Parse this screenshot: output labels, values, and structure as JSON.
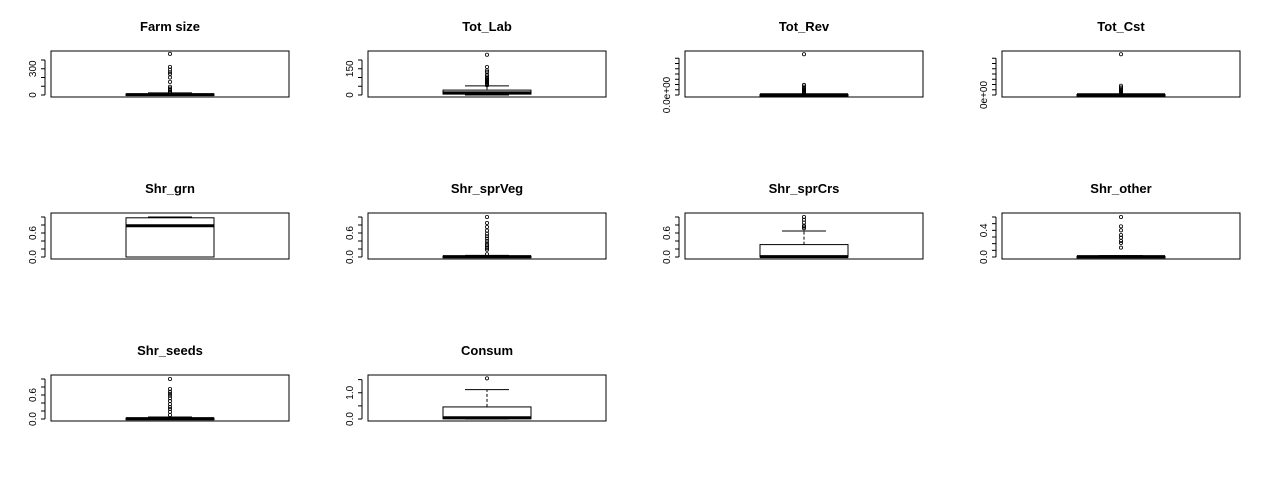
{
  "chart_data": [
    {
      "type": "box",
      "title": "Farm size",
      "ylim": [
        0,
        480
      ],
      "ticks": [
        0,
        100,
        200,
        300,
        400
      ],
      "tick_labels": [
        "0",
        "",
        "",
        "300",
        ""
      ],
      "box": {
        "min": 0,
        "q1": 2,
        "median": 5,
        "q3": 12,
        "max": 25
      },
      "outliers": [
        30,
        40,
        55,
        75,
        95,
        150,
        200,
        240,
        260,
        290,
        320,
        470
      ]
    },
    {
      "type": "box",
      "title": "Tot_Lab",
      "ylim": [
        0,
        240
      ],
      "ticks": [
        0,
        50,
        100,
        150,
        200
      ],
      "tick_labels": [
        "0",
        "",
        "",
        "150",
        ""
      ],
      "box": {
        "min": 0,
        "q1": 5,
        "median": 12,
        "q3": 28,
        "max": 52
      },
      "outliers": [
        56,
        60,
        65,
        70,
        75,
        80,
        85,
        90,
        95,
        105,
        115,
        130,
        140,
        160,
        230
      ]
    },
    {
      "type": "box",
      "title": "Tot_Rev",
      "ylim": [
        0,
        100
      ],
      "ticks": [
        0,
        12.5,
        25,
        37.5,
        50,
        62.5,
        75,
        87.5
      ],
      "tick_labels": [
        "0.0e+00",
        "",
        "",
        "",
        "",
        "",
        "",
        ""
      ],
      "box": {
        "min": 0,
        "q1": 0.3,
        "median": 0.6,
        "q3": 1.2,
        "max": 2.5
      },
      "outliers": [
        3,
        4,
        6,
        8,
        10,
        12,
        14,
        16,
        20,
        24,
        97
      ]
    },
    {
      "type": "box",
      "title": "Tot_Cst",
      "ylim": [
        0,
        100
      ],
      "ticks": [
        0,
        12.5,
        25,
        37.5,
        50,
        62.5,
        75,
        87.5
      ],
      "tick_labels": [
        "0e+00",
        "",
        "",
        "",
        "",
        "",
        "",
        ""
      ],
      "box": {
        "min": 0,
        "q1": 0.3,
        "median": 0.6,
        "q3": 1.2,
        "max": 2.5
      },
      "outliers": [
        3,
        5,
        7,
        9,
        12,
        15,
        18,
        22,
        97
      ]
    },
    {
      "type": "box",
      "title": "Shr_grn",
      "ylim": [
        0,
        1.05
      ],
      "ticks": [
        0,
        0.2,
        0.4,
        0.6,
        0.8,
        1.0
      ],
      "tick_labels": [
        "0.0",
        "",
        "",
        "0.6",
        "",
        ""
      ],
      "box": {
        "min": 0,
        "q1": 0,
        "median": 0.78,
        "q3": 0.98,
        "max": 1.0
      },
      "outliers": []
    },
    {
      "type": "box",
      "title": "Shr_sprVeg",
      "ylim": [
        0,
        1.05
      ],
      "ticks": [
        0,
        0.2,
        0.4,
        0.6,
        0.8,
        1.0
      ],
      "tick_labels": [
        "0.0",
        "",
        "",
        "0.6",
        "",
        ""
      ],
      "box": {
        "min": 0,
        "q1": 0,
        "median": 0.01,
        "q3": 0.02,
        "max": 0.04
      },
      "outliers": [
        0.07,
        0.18,
        0.22,
        0.26,
        0.3,
        0.34,
        0.4,
        0.46,
        0.52,
        0.58,
        0.66,
        0.75,
        0.85,
        1.0
      ]
    },
    {
      "type": "box",
      "title": "Shr_sprCrs",
      "ylim": [
        0,
        1.05
      ],
      "ticks": [
        0,
        0.2,
        0.4,
        0.6,
        0.8,
        1.0
      ],
      "tick_labels": [
        "0.0",
        "",
        "",
        "0.6",
        "",
        ""
      ],
      "box": {
        "min": 0,
        "q1": 0,
        "median": 0.01,
        "q3": 0.31,
        "max": 0.65
      },
      "outliers": [
        0.72,
        0.76,
        0.78,
        0.86,
        0.93,
        1.0
      ]
    },
    {
      "type": "box",
      "title": "Shr_other",
      "ylim": [
        0,
        0.63
      ],
      "ticks": [
        0,
        0.1,
        0.2,
        0.3,
        0.4,
        0.5,
        0.6
      ],
      "tick_labels": [
        "0.0",
        "",
        "",
        "",
        "0.4",
        "",
        ""
      ],
      "box": {
        "min": 0,
        "q1": 0,
        "median": 0.005,
        "q3": 0.01,
        "max": 0.02
      },
      "outliers": [
        0.14,
        0.21,
        0.24,
        0.29,
        0.33,
        0.4,
        0.46,
        0.6
      ]
    },
    {
      "type": "box",
      "title": "Shr_seeds",
      "ylim": [
        0,
        1.05
      ],
      "ticks": [
        0,
        0.2,
        0.4,
        0.6,
        0.8,
        1.0
      ],
      "tick_labels": [
        "0.0",
        "",
        "",
        "0.6",
        "",
        ""
      ],
      "box": {
        "min": 0,
        "q1": 0,
        "median": 0.01,
        "q3": 0.02,
        "max": 0.05
      },
      "outliers": [
        0.1,
        0.18,
        0.25,
        0.3,
        0.37,
        0.45,
        0.52,
        0.58,
        0.63,
        0.68,
        0.75,
        1.0
      ]
    },
    {
      "type": "box",
      "title": "Consum",
      "ylim": [
        0,
        1.6
      ],
      "ticks": [
        0,
        0.5,
        1.0,
        1.5
      ],
      "tick_labels": [
        "0.0",
        "",
        "1.0",
        ""
      ],
      "box": {
        "min": 0,
        "q1": 0.01,
        "median": 0.05,
        "q3": 0.46,
        "max": 1.12
      },
      "outliers": [
        1.55
      ]
    }
  ]
}
